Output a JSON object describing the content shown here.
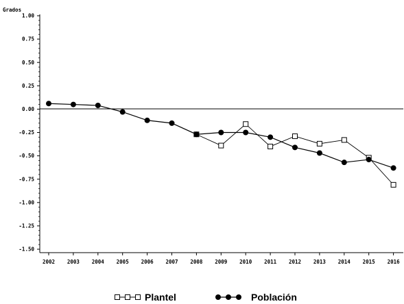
{
  "chart_data": {
    "type": "line",
    "ylabel": "Grados",
    "xlabel": "",
    "title": "",
    "x": [
      "2002",
      "2003",
      "2004",
      "2005",
      "2006",
      "2007",
      "2008",
      "2009",
      "2010",
      "2011",
      "2012",
      "2013",
      "2014",
      "2015",
      "2016"
    ],
    "ylim": [
      -1.5,
      1.0
    ],
    "yticks": [
      "1.00",
      "0.75",
      "0.50",
      "0.25",
      "0.00",
      "-0.25",
      "-0.50",
      "-0.75",
      "-1.00",
      "-1.25",
      "-1.50"
    ],
    "ytick_values": [
      1.0,
      0.75,
      0.5,
      0.25,
      0.0,
      -0.25,
      -0.5,
      -0.75,
      -1.0,
      -1.25,
      -1.5
    ],
    "reference_line": 0.0,
    "grid": false,
    "legend_position": "bottom",
    "series": [
      {
        "name": "Plantel",
        "marker": "open-square",
        "values": [
          null,
          null,
          null,
          null,
          null,
          null,
          -0.27,
          -0.39,
          -0.16,
          -0.4,
          -0.29,
          -0.37,
          -0.33,
          -0.52,
          -0.81
        ]
      },
      {
        "name": "Población",
        "marker": "filled-circle",
        "values": [
          0.06,
          0.05,
          0.04,
          -0.03,
          -0.12,
          -0.15,
          -0.27,
          -0.25,
          -0.25,
          -0.3,
          -0.41,
          -0.47,
          -0.57,
          -0.54,
          -0.63
        ]
      }
    ]
  }
}
